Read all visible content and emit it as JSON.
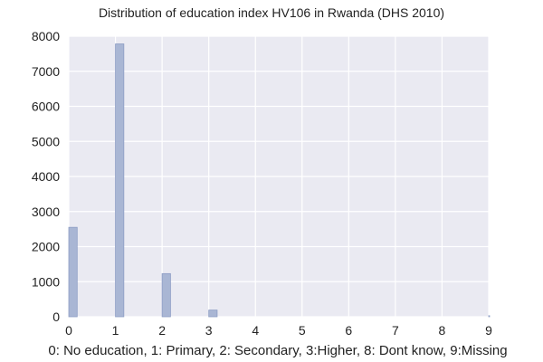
{
  "chart_data": {
    "type": "bar",
    "title": "Distribution of education index HV106 in Rwanda (DHS 2010)",
    "xlabel": "0: No education, 1: Primary, 2: Secondary, 3:Higher, 8: Dont know, 9:Missing",
    "ylabel": "",
    "xlim": [
      0,
      9
    ],
    "ylim": [
      0,
      8000
    ],
    "xticks": [
      "0",
      "1",
      "2",
      "3",
      "4",
      "5",
      "6",
      "7",
      "8",
      "9"
    ],
    "yticks": [
      "0",
      "1000",
      "2000",
      "3000",
      "4000",
      "5000",
      "6000",
      "7000",
      "8000"
    ],
    "bin_width": 0.18,
    "categories": [
      "0",
      "1",
      "2",
      "3",
      "9"
    ],
    "x": [
      0,
      1,
      2,
      3,
      9
    ],
    "values": [
      2550,
      7780,
      1230,
      190,
      30
    ],
    "grid": true,
    "colors": {
      "background": "#eaeaf2",
      "grid": "#ffffff",
      "bar_fill": "#a9b6d4",
      "bar_stroke": "#8d9dc4"
    }
  }
}
